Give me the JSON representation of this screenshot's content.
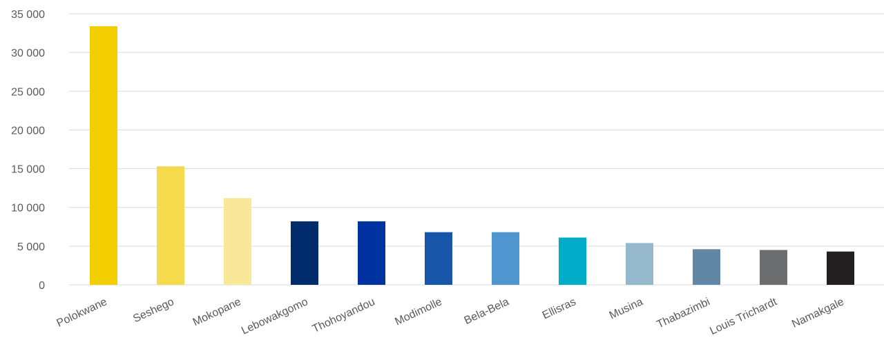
{
  "chart_data": {
    "type": "bar",
    "title": "",
    "xlabel": "",
    "ylabel": "",
    "ylim": [
      0,
      35000
    ],
    "yticks": [
      0,
      5000,
      10000,
      15000,
      20000,
      25000,
      30000,
      35000
    ],
    "ytick_labels": [
      "0",
      "5 000",
      "10 000",
      "15 000",
      "20 000",
      "25 000",
      "30 000",
      "35 000"
    ],
    "grid": true,
    "legend": "none",
    "categories": [
      "Polokwane",
      "Seshego",
      "Mokopane",
      "Lebowakgomo",
      "Thohoyandou",
      "Modimolle",
      "Bela-Bela",
      "Ellisras",
      "Musina",
      "Thabazimbi",
      "Louis Trichardt",
      "Namakgale"
    ],
    "values": [
      33400,
      15300,
      11200,
      8200,
      8200,
      6800,
      6800,
      6100,
      5400,
      4600,
      4500,
      4300
    ],
    "colors": [
      "#F2CD00",
      "#F5DA4D",
      "#F8E898",
      "#002C6E",
      "#0033A0",
      "#1756A9",
      "#4F95D0",
      "#00ACC8",
      "#95B8CC",
      "#6287A4",
      "#6C6D6F",
      "#231F20"
    ]
  }
}
